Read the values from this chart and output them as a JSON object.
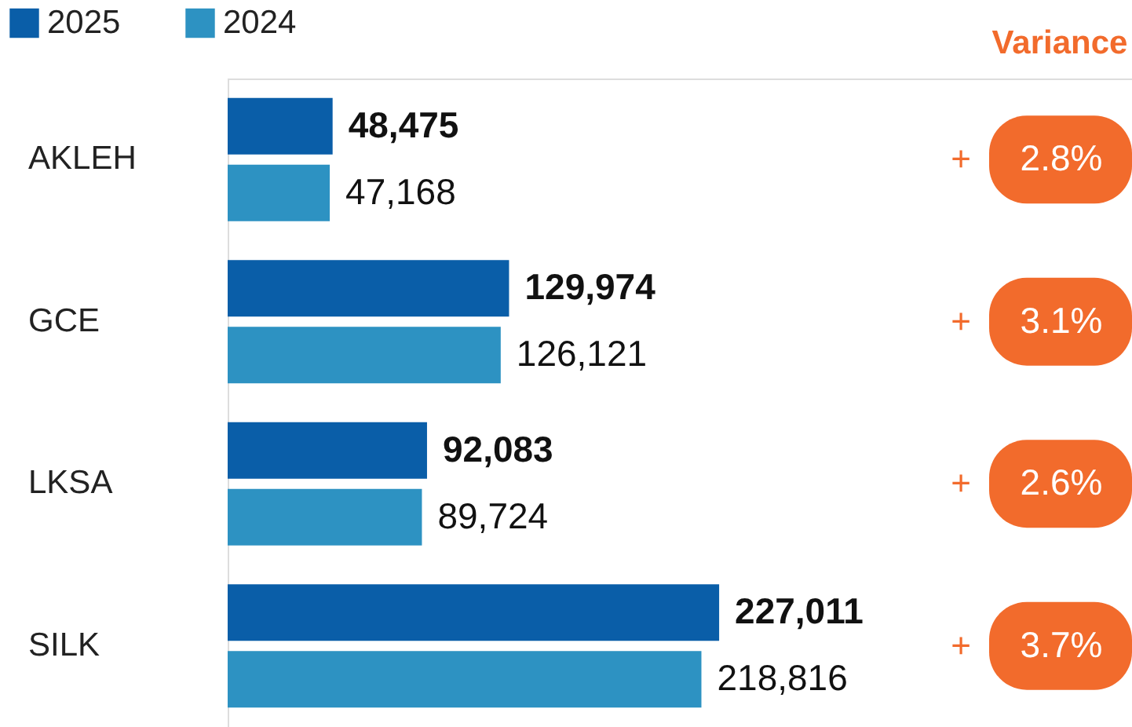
{
  "chart_data": {
    "type": "bar",
    "orientation": "horizontal",
    "categories": [
      "AKLEH",
      "GCE",
      "LKSA",
      "SILK"
    ],
    "series": [
      {
        "name": "2025",
        "color": "#0a5ea8",
        "values": [
          48475,
          129974,
          92083,
          227011
        ],
        "value_labels": [
          "48,475",
          "129,974",
          "92,083",
          "227,011"
        ]
      },
      {
        "name": "2024",
        "color": "#2d92c2",
        "values": [
          47168,
          126121,
          89724,
          218816
        ],
        "value_labels": [
          "47,168",
          "126,121",
          "89,724",
          "218,816"
        ]
      }
    ],
    "legend": "top left",
    "annotations": [
      "Variance",
      "+",
      "2.8%",
      "+",
      "3.1%",
      "+",
      "2.6%",
      "+",
      "3.7%"
    ]
  }
}
